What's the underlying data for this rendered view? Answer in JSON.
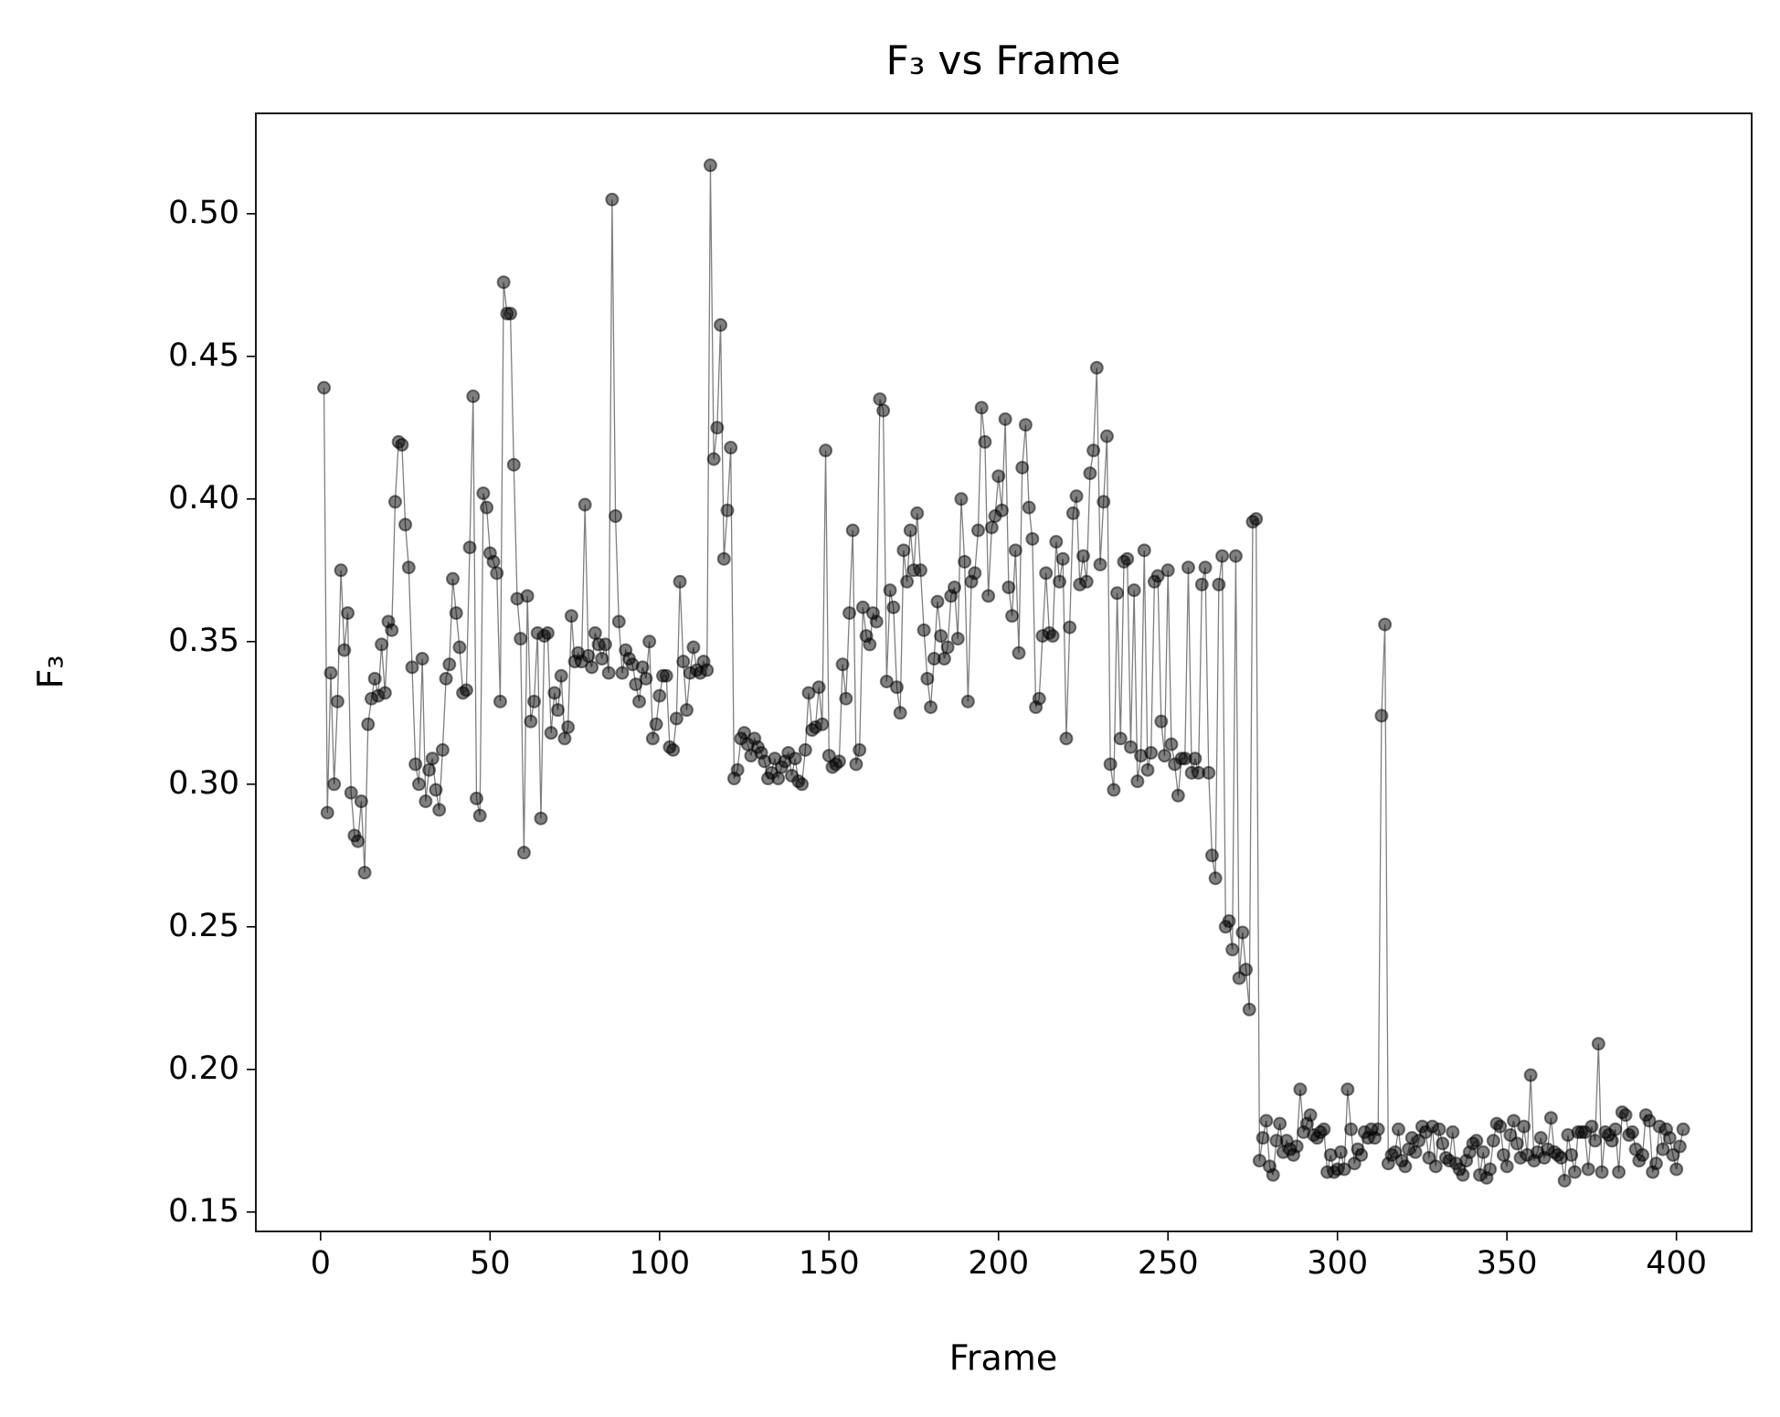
{
  "chart_data": {
    "type": "line",
    "title": "F₃ vs Frame",
    "x_label": "Frame",
    "y_label": "F₃",
    "color": "#000000",
    "grid": false,
    "xlim": [
      -19.1,
      422.2
    ],
    "ylim": [
      0.1432,
      0.5352
    ],
    "xticks": [
      0,
      50,
      100,
      150,
      200,
      250,
      300,
      350,
      400
    ],
    "yticks": [
      0.15,
      {
        "value": 0.2,
        "label": "0.20"
      },
      0.25,
      {
        "value": 0.3,
        "label": "0.30"
      },
      0.35,
      {
        "value": 0.4,
        "label": "0.40"
      },
      0.45,
      {
        "value": 0.5,
        "label": "0.50"
      }
    ],
    "x": [
      1,
      2,
      3,
      4,
      5,
      6,
      7,
      8,
      9,
      10,
      11,
      12,
      13,
      14,
      15,
      16,
      17,
      18,
      19,
      20,
      21,
      22,
      23,
      24,
      25,
      26,
      27,
      28,
      29,
      30,
      31,
      32,
      33,
      34,
      35,
      36,
      37,
      38,
      39,
      40,
      41,
      42,
      43,
      44,
      45,
      46,
      47,
      48,
      49,
      50,
      51,
      52,
      53,
      54,
      55,
      56,
      57,
      58,
      59,
      60,
      61,
      62,
      63,
      64,
      65,
      66,
      67,
      68,
      69,
      70,
      71,
      72,
      73,
      74,
      75,
      76,
      77,
      78,
      79,
      80,
      81,
      82,
      83,
      84,
      85,
      86,
      87,
      88,
      89,
      90,
      91,
      92,
      93,
      94,
      95,
      96,
      97,
      98,
      99,
      100,
      101,
      102,
      103,
      104,
      105,
      106,
      107,
      108,
      109,
      110,
      111,
      112,
      113,
      114,
      115,
      116,
      117,
      118,
      119,
      120,
      121,
      122,
      123,
      124,
      125,
      126,
      127,
      128,
      129,
      130,
      131,
      132,
      133,
      134,
      135,
      136,
      137,
      138,
      139,
      140,
      141,
      142,
      143,
      144,
      145,
      146,
      147,
      148,
      149,
      150,
      151,
      152,
      153,
      154,
      155,
      156,
      157,
      158,
      159,
      160,
      161,
      162,
      163,
      164,
      165,
      166,
      167,
      168,
      169,
      170,
      171,
      172,
      173,
      174,
      175,
      176,
      177,
      178,
      179,
      180,
      181,
      182,
      183,
      184,
      185,
      186,
      187,
      188,
      189,
      190,
      191,
      192,
      193,
      194,
      195,
      196,
      197,
      198,
      199,
      200,
      201,
      202,
      203,
      204,
      205,
      206,
      207,
      208,
      209,
      210,
      211,
      212,
      213,
      214,
      215,
      216,
      217,
      218,
      219,
      220,
      221,
      222,
      223,
      224,
      225,
      226,
      227,
      228,
      229,
      230,
      231,
      232,
      233,
      234,
      235,
      236,
      237,
      238,
      239,
      240,
      241,
      242,
      243,
      244,
      245,
      246,
      247,
      248,
      249,
      250,
      251,
      252,
      253,
      254,
      255,
      256,
      257,
      258,
      259,
      260,
      261,
      262,
      263,
      264,
      265,
      266,
      267,
      268,
      269,
      270,
      271,
      272,
      273,
      274,
      275,
      276,
      277,
      278,
      279,
      280,
      281,
      282,
      283,
      284,
      285,
      286,
      287,
      288,
      289,
      290,
      291,
      292,
      293,
      294,
      295,
      296,
      297,
      298,
      299,
      300,
      301,
      302,
      303,
      304,
      305,
      306,
      307,
      308,
      309,
      310,
      311,
      312,
      313,
      314,
      315,
      316,
      317,
      318,
      319,
      320,
      321,
      322,
      323,
      324,
      325,
      326,
      327,
      328,
      329,
      330,
      331,
      332,
      333,
      334,
      335,
      336,
      337,
      338,
      339,
      340,
      341,
      342,
      343,
      344,
      345,
      346,
      347,
      348,
      349,
      350,
      351,
      352,
      353,
      354,
      355,
      356,
      357,
      358,
      359,
      360,
      361,
      362,
      363,
      364,
      365,
      366,
      367,
      368,
      369,
      370,
      371,
      372,
      373,
      374,
      375,
      376,
      377,
      378,
      379,
      380,
      381,
      382,
      383,
      384,
      385,
      386,
      387,
      388,
      389,
      390,
      391,
      392,
      393,
      394,
      395,
      396,
      397,
      398,
      399,
      400,
      401,
      402
    ],
    "values": [
      0.439,
      0.29,
      0.339,
      0.3,
      0.329,
      0.375,
      0.347,
      0.36,
      0.297,
      0.282,
      0.28,
      0.294,
      0.269,
      0.321,
      0.33,
      0.337,
      0.331,
      0.349,
      0.332,
      0.357,
      0.354,
      0.399,
      0.42,
      0.419,
      0.391,
      0.376,
      0.341,
      0.307,
      0.3,
      0.344,
      0.294,
      0.305,
      0.309,
      0.298,
      0.291,
      0.312,
      0.337,
      0.342,
      0.372,
      0.36,
      0.348,
      0.332,
      0.333,
      0.383,
      0.436,
      0.295,
      0.289,
      0.402,
      0.397,
      0.381,
      0.378,
      0.374,
      0.329,
      0.476,
      0.465,
      0.465,
      0.412,
      0.365,
      0.351,
      0.276,
      0.366,
      0.322,
      0.329,
      0.353,
      0.288,
      0.352,
      0.353,
      0.318,
      0.332,
      0.326,
      0.338,
      0.316,
      0.32,
      0.359,
      0.343,
      0.346,
      0.343,
      0.398,
      0.345,
      0.341,
      0.353,
      0.349,
      0.344,
      0.349,
      0.339,
      0.505,
      0.394,
      0.357,
      0.339,
      0.347,
      0.344,
      0.342,
      0.335,
      0.329,
      0.341,
      0.337,
      0.35,
      0.316,
      0.321,
      0.331,
      0.338,
      0.338,
      0.313,
      0.312,
      0.323,
      0.371,
      0.343,
      0.326,
      0.339,
      0.348,
      0.34,
      0.339,
      0.343,
      0.34,
      0.517,
      0.414,
      0.425,
      0.461,
      0.379,
      0.396,
      0.418,
      0.302,
      0.305,
      0.316,
      0.318,
      0.314,
      0.31,
      0.316,
      0.313,
      0.311,
      0.308,
      0.302,
      0.304,
      0.309,
      0.302,
      0.306,
      0.308,
      0.311,
      0.303,
      0.309,
      0.301,
      0.3,
      0.312,
      0.332,
      0.319,
      0.32,
      0.334,
      0.321,
      0.417,
      0.31,
      0.306,
      0.307,
      0.308,
      0.342,
      0.33,
      0.36,
      0.389,
      0.307,
      0.312,
      0.362,
      0.352,
      0.349,
      0.36,
      0.357,
      0.435,
      0.431,
      0.336,
      0.368,
      0.362,
      0.334,
      0.325,
      0.382,
      0.371,
      0.389,
      0.375,
      0.395,
      0.375,
      0.354,
      0.337,
      0.327,
      0.344,
      0.364,
      0.352,
      0.344,
      0.348,
      0.366,
      0.369,
      0.351,
      0.4,
      0.378,
      0.329,
      0.371,
      0.374,
      0.389,
      0.432,
      0.42,
      0.366,
      0.39,
      0.394,
      0.408,
      0.396,
      0.428,
      0.369,
      0.359,
      0.382,
      0.346,
      0.411,
      0.426,
      0.397,
      0.386,
      0.327,
      0.33,
      0.352,
      0.374,
      0.353,
      0.352,
      0.385,
      0.371,
      0.379,
      0.316,
      0.355,
      0.395,
      0.401,
      0.37,
      0.38,
      0.371,
      0.409,
      0.417,
      0.446,
      0.377,
      0.399,
      0.422,
      0.307,
      0.298,
      0.367,
      0.316,
      0.378,
      0.379,
      0.313,
      0.368,
      0.301,
      0.31,
      0.382,
      0.305,
      0.311,
      0.371,
      0.373,
      0.322,
      0.31,
      0.375,
      0.314,
      0.307,
      0.296,
      0.309,
      0.309,
      0.376,
      0.304,
      0.309,
      0.304,
      0.37,
      0.376,
      0.304,
      0.275,
      0.267,
      0.37,
      0.38,
      0.25,
      0.252,
      0.242,
      0.38,
      0.232,
      0.248,
      0.235,
      0.221,
      0.392,
      0.393,
      0.168,
      0.176,
      0.182,
      0.166,
      0.163,
      0.175,
      0.181,
      0.171,
      0.175,
      0.172,
      0.17,
      0.173,
      0.193,
      0.178,
      0.181,
      0.184,
      0.177,
      0.176,
      0.178,
      0.179,
      0.164,
      0.17,
      0.164,
      0.165,
      0.171,
      0.165,
      0.193,
      0.179,
      0.167,
      0.172,
      0.17,
      0.178,
      0.176,
      0.179,
      0.176,
      0.179,
      0.324,
      0.356,
      0.167,
      0.17,
      0.171,
      0.179,
      0.168,
      0.166,
      0.172,
      0.176,
      0.171,
      0.175,
      0.18,
      0.178,
      0.169,
      0.18,
      0.166,
      0.179,
      0.174,
      0.169,
      0.168,
      0.178,
      0.167,
      0.165,
      0.163,
      0.168,
      0.171,
      0.174,
      0.175,
      0.163,
      0.171,
      0.162,
      0.165,
      0.175,
      0.181,
      0.18,
      0.17,
      0.166,
      0.177,
      0.182,
      0.174,
      0.169,
      0.18,
      0.17,
      0.198,
      0.168,
      0.171,
      0.176,
      0.169,
      0.172,
      0.183,
      0.171,
      0.17,
      0.169,
      0.161,
      0.177,
      0.17,
      0.164,
      0.178,
      0.178,
      0.178,
      0.165,
      0.18,
      0.175,
      0.209,
      0.164,
      0.178,
      0.177,
      0.175,
      0.179,
      0.164,
      0.185,
      0.184,
      0.177,
      0.178,
      0.172,
      0.168,
      0.17,
      0.184,
      0.182,
      0.164,
      0.167,
      0.18,
      0.172,
      0.179,
      0.176,
      0.17,
      0.165,
      0.173,
      0.179
    ]
  }
}
